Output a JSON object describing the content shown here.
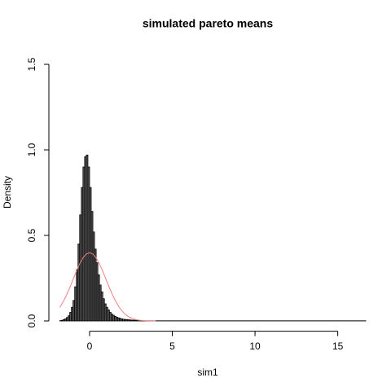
{
  "chart_data": {
    "type": "histogram",
    "title": "simulated pareto means",
    "x_label": "sim1",
    "y_label": "Density",
    "bins": [
      -1.8,
      -1.7,
      -1.6,
      -1.5,
      -1.4,
      -1.3,
      -1.2,
      -1.1,
      -1.0,
      -0.9,
      -0.8,
      -0.7,
      -0.6,
      -0.5,
      -0.4,
      -0.3,
      -0.2,
      -0.1,
      0.0,
      0.1,
      0.2,
      0.3,
      0.4,
      0.5,
      0.6,
      0.7,
      0.8,
      0.9,
      1.0,
      1.1,
      1.2,
      1.3,
      1.4,
      1.5,
      1.6,
      1.7,
      1.8,
      1.9,
      2.0,
      2.1,
      2.2,
      2.3,
      2.4,
      2.5,
      2.6,
      2.7,
      2.8,
      2.9,
      3.0,
      16.7
    ],
    "values": [
      0.002,
      0.004,
      0.008,
      0.012,
      0.02,
      0.03,
      0.05,
      0.08,
      0.12,
      0.2,
      0.3,
      0.45,
      0.62,
      0.78,
      0.9,
      0.96,
      0.97,
      0.9,
      0.78,
      0.64,
      0.52,
      0.42,
      0.34,
      0.27,
      0.21,
      0.17,
      0.13,
      0.1,
      0.08,
      0.065,
      0.05,
      0.04,
      0.033,
      0.027,
      0.022,
      0.018,
      0.015,
      0.012,
      0.01,
      0.009,
      0.008,
      0.007,
      0.006,
      0.005,
      0.005,
      0.004,
      0.004,
      0.003,
      0.001
    ],
    "color": "#5a5a5a",
    "curve": {
      "type": "line",
      "color": "#f08080",
      "x": [
        -1.8,
        -1.6,
        -1.4,
        -1.2,
        -1.0,
        -0.8,
        -0.6,
        -0.4,
        -0.2,
        0,
        0.2,
        0.4,
        0.6,
        0.8,
        1.0,
        1.2,
        1.4,
        1.6,
        1.8,
        2.0,
        2.2,
        2.4,
        2.6,
        2.8,
        3.0,
        3.4,
        4.0
      ],
      "values": [
        0.079,
        0.111,
        0.15,
        0.194,
        0.242,
        0.29,
        0.333,
        0.368,
        0.391,
        0.399,
        0.391,
        0.368,
        0.333,
        0.29,
        0.242,
        0.194,
        0.15,
        0.111,
        0.079,
        0.054,
        0.035,
        0.022,
        0.014,
        0.008,
        0.004,
        0.001,
        0.0001
      ]
    },
    "xlim": [
      -2.46,
      17.2
    ],
    "ylim": [
      -0.06,
      1.56
    ],
    "xticks": [
      0,
      5,
      10,
      15
    ],
    "yticks": [
      {
        "value": 0,
        "label": "0.0"
      },
      0.5,
      {
        "value": 1,
        "label": "1.0"
      },
      {
        "value": 1.5,
        "label": "1.5"
      }
    ]
  }
}
